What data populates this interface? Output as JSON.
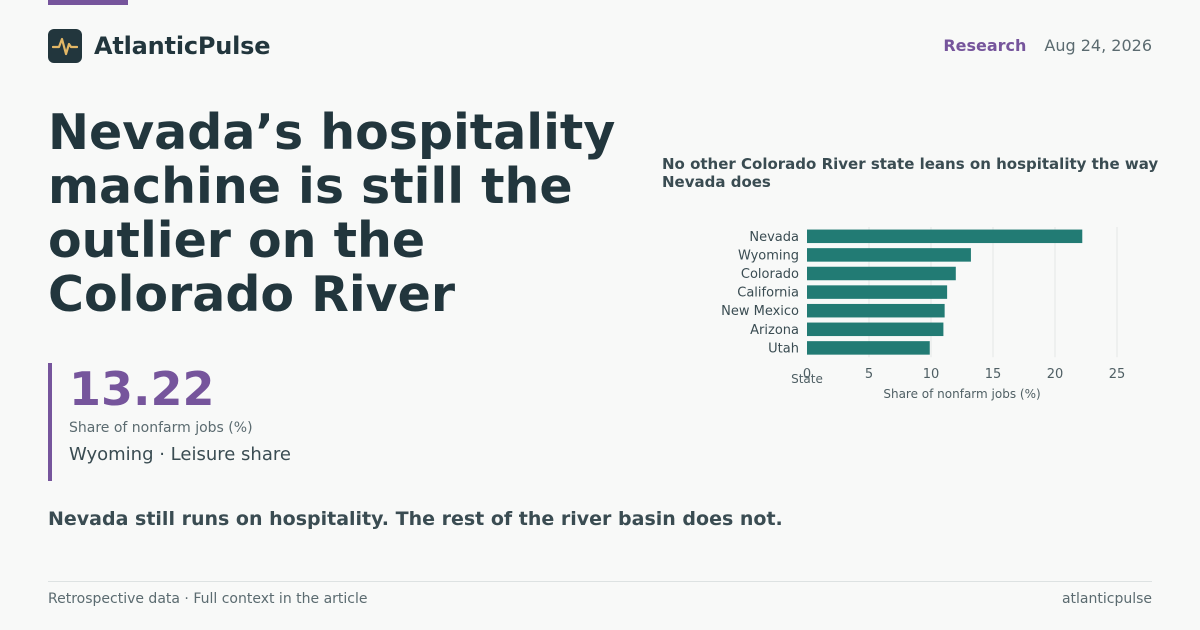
{
  "brand": {
    "name": "AtlanticPulse",
    "logo_icon": "pulse-icon"
  },
  "meta": {
    "section": "Research",
    "date": "Aug 24, 2026"
  },
  "headline": "Nevada’s hospitality machine is still the outlier on the Colorado River",
  "kpi": {
    "value": "13.22",
    "label": "Share of nonfarm jobs (%)",
    "sub": "Wyoming · Leisure share"
  },
  "dek": "Nevada still runs on hospitality. The rest of the river basin does not.",
  "footer": {
    "left": "Retrospective data · Full context in the article",
    "right": "atlanticpulse"
  },
  "colors": {
    "accent": "#76559c",
    "bar": "#227b74",
    "text": "#22363d"
  },
  "chart_data": {
    "type": "bar",
    "orientation": "horizontal",
    "title": "No other Colorado River state leans on hospitality the way Nevada does",
    "ylabel": "State",
    "xlabel": "Share of nonfarm jobs (%)",
    "categories": [
      "Nevada",
      "Wyoming",
      "Colorado",
      "California",
      "New Mexico",
      "Arizona",
      "Utah"
    ],
    "values": [
      22.2,
      13.22,
      12.0,
      11.3,
      11.1,
      11.0,
      9.9
    ],
    "xlim": [
      0,
      25
    ],
    "xticks": [
      0,
      5,
      10,
      15,
      20,
      25
    ],
    "grid": true
  }
}
